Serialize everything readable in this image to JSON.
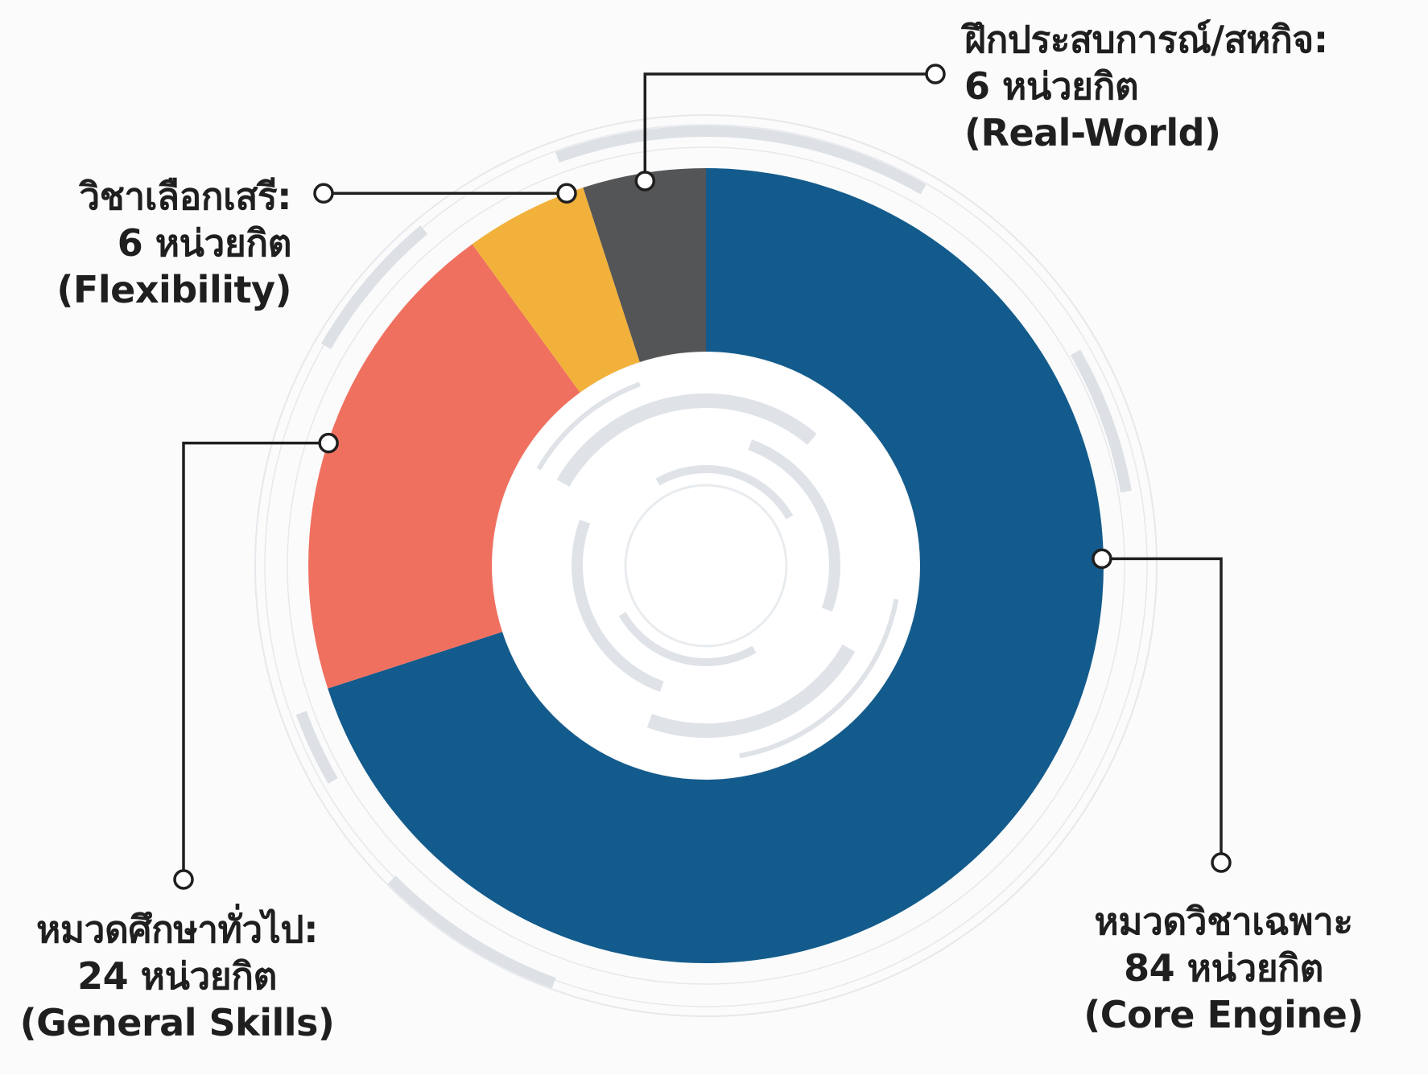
{
  "chart_data": {
    "type": "pie",
    "style": "donut",
    "unit": "หน่วยกิต",
    "slices": [
      {
        "name": "หมวดวิชาเฉพาะ",
        "value": 84,
        "value_text": "84 หน่วยกิต",
        "note": "(Core Engine)",
        "color": "#135b8c"
      },
      {
        "name": "หมวดศึกษาทั่วไป:",
        "value": 24,
        "value_text": "24 หน่วยกิต",
        "note": "(General Skills)",
        "color": "#f0705f"
      },
      {
        "name": "วิชาเลือกเสรี:",
        "value": 6,
        "value_text": "6 หน่วยกิต",
        "note": "(Flexibility)",
        "color": "#f2b13a"
      },
      {
        "name": "ฝึกประสบการณ์/สหกิจ:",
        "value": 6,
        "value_text": "6 หน่วยกิต",
        "note": "(Real-World)",
        "color": "#545557"
      }
    ],
    "legend": "none",
    "grid": false
  }
}
